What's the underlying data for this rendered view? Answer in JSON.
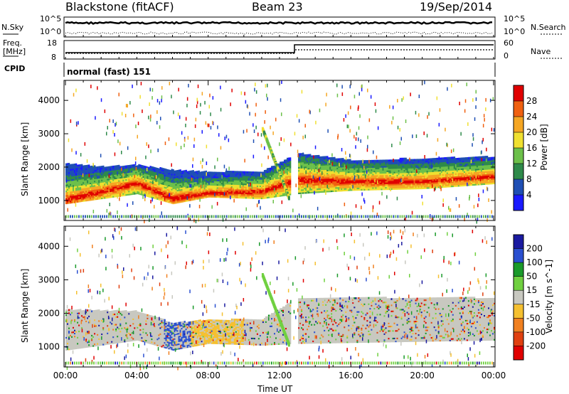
{
  "header": {
    "station": "Blackstone (fitACF)",
    "beam": "Beam 23",
    "date": "19/Sep/2014"
  },
  "strips": {
    "nsky_label": "N.Sky",
    "nsky_ticks": [
      "10^5",
      "10^0"
    ],
    "nsearch_label": "N.Search",
    "nsearch_ticks": [
      "10^5",
      "10^0"
    ],
    "freq_label": "Freq.",
    "freq_unit": "[MHz]",
    "freq_ticks": [
      "18",
      "8"
    ],
    "nave_label": "Nave",
    "nave_ticks": [
      "60",
      "0"
    ],
    "cpid_label": "CPID",
    "cpid_value": "normal (fast) 151"
  },
  "chart_data": [
    {
      "type": "heatmap",
      "title": "",
      "ylabel": "Slant Range [km]",
      "xlabel": "Time UT",
      "x_ticks": [
        "00:00",
        "04:00",
        "08:00",
        "12:00",
        "16:00",
        "20:00",
        "00:00"
      ],
      "y_ticks": [
        1000,
        2000,
        3000,
        4000
      ],
      "ylim": [
        400,
        4600
      ],
      "colorbar_label": "Power [dB]",
      "colorbar_ticks": [
        4,
        8,
        12,
        16,
        20,
        24,
        28
      ],
      "colors": [
        "#1a1aff",
        "#1f4fb4",
        "#2e8a4a",
        "#6cc04a",
        "#f0e030",
        "#f5a623",
        "#f06010",
        "#e00000"
      ],
      "bands": [
        {
          "hour": 0,
          "lower_km": 900,
          "core_km": 1000,
          "upper_km": 2100
        },
        {
          "hour": 2,
          "lower_km": 1050,
          "core_km": 1250,
          "upper_km": 2000
        },
        {
          "hour": 4,
          "lower_km": 1200,
          "core_km": 1500,
          "upper_km": 2050
        },
        {
          "hour": 6,
          "lower_km": 900,
          "core_km": 1050,
          "upper_km": 1900
        },
        {
          "hour": 8,
          "lower_km": 1100,
          "core_km": 1200,
          "upper_km": 1850
        },
        {
          "hour": 11,
          "lower_km": 1050,
          "core_km": 1250,
          "upper_km": 1850
        },
        {
          "hour": 13,
          "lower_km": 1200,
          "core_km": 1600,
          "upper_km": 2400
        },
        {
          "hour": 16,
          "lower_km": 1300,
          "core_km": 1550,
          "upper_km": 2200
        },
        {
          "hour": 20,
          "lower_km": 1350,
          "core_km": 1550,
          "upper_km": 2250
        },
        {
          "hour": 24,
          "lower_km": 1500,
          "core_km": 1700,
          "upper_km": 2300
        }
      ]
    },
    {
      "type": "heatmap",
      "title": "",
      "ylabel": "Slant Range [km]",
      "xlabel": "Time UT",
      "x_ticks": [
        "00:00",
        "04:00",
        "08:00",
        "12:00",
        "16:00",
        "20:00",
        "00:00"
      ],
      "y_ticks": [
        1000,
        2000,
        3000,
        4000
      ],
      "ylim": [
        400,
        4600
      ],
      "colorbar_label": "Velocity [m s^-1]",
      "colorbar_ticks": [
        200,
        100,
        50,
        15,
        -15,
        -50,
        -100,
        -200
      ],
      "colors": [
        "#1a1aa0",
        "#2a4fd0",
        "#1a9a2a",
        "#70d040",
        "#c8c8c0",
        "#f5c030",
        "#f08020",
        "#e04010",
        "#e00000"
      ],
      "bands": [
        {
          "hour": 0,
          "lower_km": 900,
          "upper_km": 2100,
          "color": "#c8c8c0"
        },
        {
          "hour": 4,
          "lower_km": 1200,
          "upper_km": 2050,
          "color": "#c8c8c0"
        },
        {
          "hour": 6,
          "lower_km": 900,
          "upper_km": 1700,
          "color": "#2a4fd0"
        },
        {
          "hour": 8,
          "lower_km": 1100,
          "upper_km": 1800,
          "color": "#f5c030"
        },
        {
          "hour": 11,
          "lower_km": 1050,
          "upper_km": 1800,
          "color": "#f5c030"
        },
        {
          "hour": 13,
          "lower_km": 1100,
          "upper_km": 2450,
          "color": "#c8c8c0"
        },
        {
          "hour": 24,
          "lower_km": 1200,
          "upper_km": 2450,
          "color": "#c8c8c0"
        }
      ]
    }
  ]
}
